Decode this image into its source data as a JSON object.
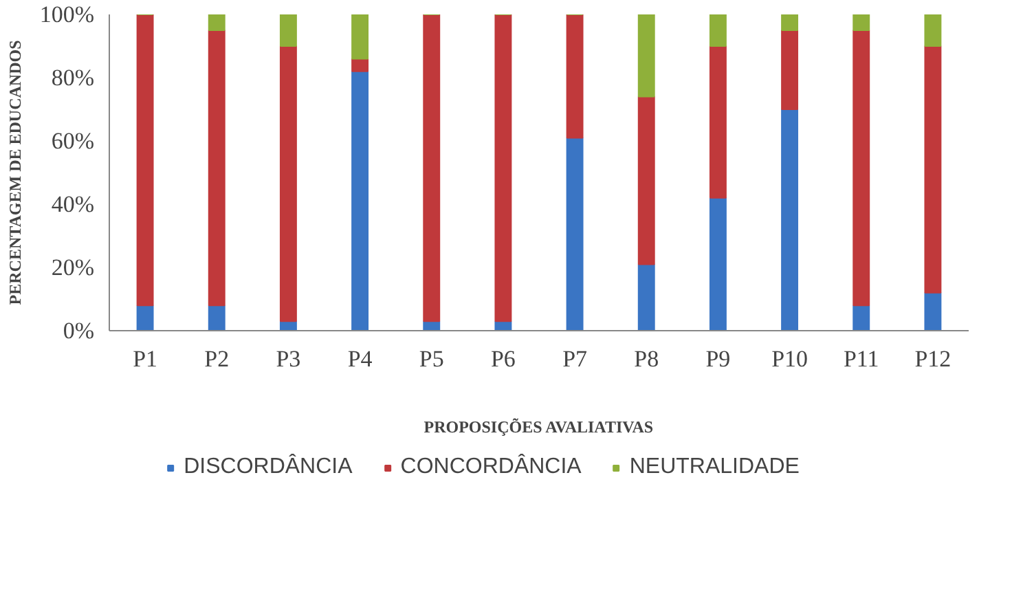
{
  "chart_data": {
    "type": "bar",
    "stacked": true,
    "xlabel": "PROPOSIÇÕES AVALIATIVAS",
    "ylabel": "PERCENTAGEM DE EDUCANDOS",
    "categories": [
      "P1",
      "P2",
      "P3",
      "P4",
      "P5",
      "P6",
      "P7",
      "P8",
      "P9",
      "P10",
      "P11",
      "P12"
    ],
    "series": [
      {
        "name": "DISCORDÂNCIA",
        "color": "#3a75c4",
        "values": [
          8,
          8,
          3,
          82,
          3,
          3,
          61,
          21,
          42,
          70,
          8,
          12
        ]
      },
      {
        "name": "CONCORDÂNCIA",
        "color": "#c0393b",
        "values": [
          92,
          87,
          87,
          4,
          97,
          97,
          39,
          53,
          48,
          25,
          87,
          78
        ]
      },
      {
        "name": "NEUTRALIDADE",
        "color": "#8fb03a",
        "values": [
          0,
          5,
          10,
          14,
          0,
          0,
          0,
          26,
          10,
          5,
          5,
          10
        ]
      }
    ],
    "ylim": [
      0,
      100
    ],
    "yticks": [
      {
        "value": 0,
        "label": "0%"
      },
      {
        "value": 20,
        "label": "20%"
      },
      {
        "value": 40,
        "label": "40%"
      },
      {
        "value": 60,
        "label": "60%"
      },
      {
        "value": 80,
        "label": "80%"
      },
      {
        "value": 100,
        "label": "100%"
      }
    ],
    "grid": false,
    "legend": "bottom"
  }
}
